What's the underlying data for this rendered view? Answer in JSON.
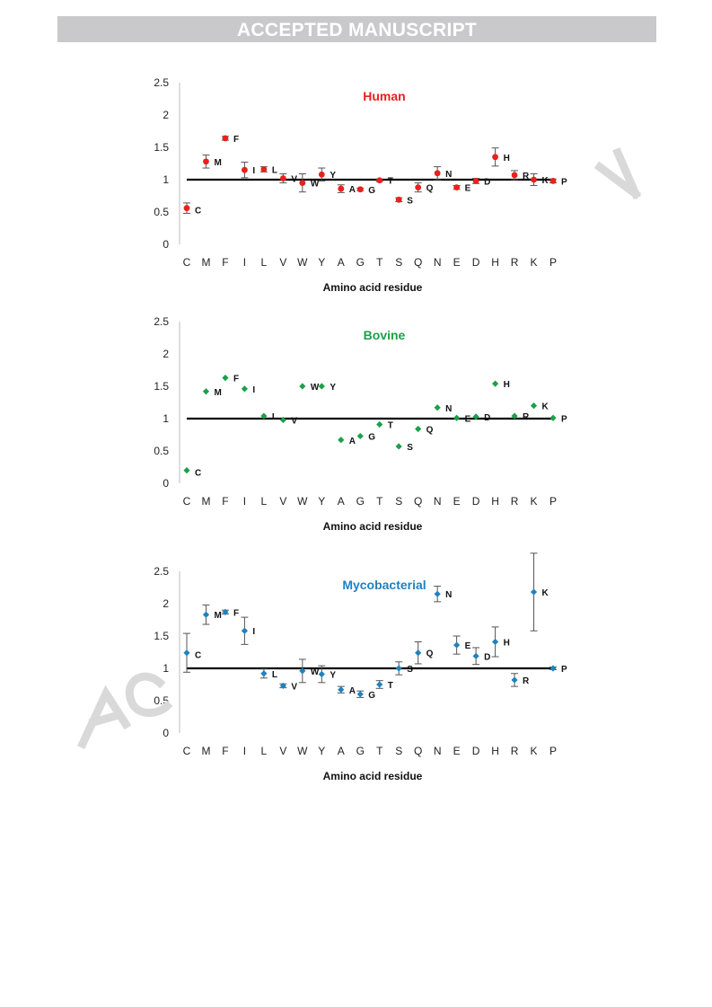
{
  "header": {
    "banner": "ACCEPTED MANUSCRIPT"
  },
  "chart_data": [
    {
      "type": "scatter",
      "title": "Human",
      "title_color": "#e8211c",
      "marker_color": "#e8211c",
      "marker": "circle",
      "xlabel": "Amino acid residue",
      "ylabel": "",
      "ylim": [
        0,
        2.5
      ],
      "yticks": [
        "0",
        "0.5",
        "1",
        "1.5",
        "2",
        "2.5"
      ],
      "reference_line": 1,
      "categories": [
        "C",
        "M",
        "F",
        "I",
        "L",
        "V",
        "W",
        "Y",
        "A",
        "G",
        "T",
        "S",
        "Q",
        "N",
        "E",
        "D",
        "H",
        "R",
        "K",
        "P"
      ],
      "point_labels": [
        "C",
        "M",
        "F",
        "I",
        "L",
        "V",
        "W",
        "Y",
        "A",
        "G",
        "T",
        "S",
        "Q",
        "N",
        "E",
        "D",
        "H",
        "R",
        "K",
        "P"
      ],
      "values": [
        0.56,
        1.28,
        1.64,
        1.15,
        1.16,
        1.02,
        0.95,
        1.08,
        0.86,
        0.85,
        0.99,
        0.69,
        0.88,
        1.1,
        0.88,
        0.98,
        1.35,
        1.07,
        1.0,
        0.98
      ],
      "errors": [
        0.08,
        0.1,
        0.03,
        0.12,
        0.04,
        0.07,
        0.14,
        0.1,
        0.06,
        0.02,
        0.02,
        0.03,
        0.07,
        0.1,
        0.03,
        0.04,
        0.14,
        0.07,
        0.09,
        0.03
      ]
    },
    {
      "type": "scatter",
      "title": "Bovine",
      "title_color": "#1aa14a",
      "marker_color": "#1aa14a",
      "marker": "diamond",
      "xlabel": "Amino acid residue",
      "ylabel": "",
      "ylim": [
        0,
        2.5
      ],
      "yticks": [
        "0",
        "0.5",
        "1",
        "1.5",
        "2",
        "2.5"
      ],
      "reference_line": 1,
      "categories": [
        "C",
        "M",
        "F",
        "I",
        "L",
        "V",
        "W",
        "Y",
        "A",
        "G",
        "T",
        "S",
        "Q",
        "N",
        "E",
        "D",
        "H",
        "R",
        "K",
        "P"
      ],
      "point_labels": [
        "C",
        "M",
        "F",
        "I",
        "L",
        "V",
        "W",
        "Y",
        "A",
        "G",
        "T",
        "S",
        "Q",
        "N",
        "E",
        "D",
        "H",
        "R",
        "K",
        "P"
      ],
      "values": [
        0.2,
        1.42,
        1.63,
        1.46,
        1.04,
        0.98,
        1.5,
        1.5,
        0.67,
        0.73,
        0.91,
        0.57,
        0.84,
        1.17,
        1.01,
        1.03,
        1.54,
        1.04,
        1.2,
        1.01
      ],
      "errors": []
    },
    {
      "type": "scatter",
      "title": "Mycobacterial",
      "title_color": "#1f82c0",
      "marker_color": "#1f82c0",
      "marker": "diamond",
      "xlabel": "Amino acid residue",
      "ylabel": "",
      "ylim": [
        0,
        2.5
      ],
      "yticks": [
        "0",
        "0.5",
        "1",
        "1.5",
        "2",
        "2.5"
      ],
      "reference_line": 1,
      "categories": [
        "C",
        "M",
        "F",
        "I",
        "L",
        "V",
        "W",
        "Y",
        "A",
        "G",
        "T",
        "S",
        "Q",
        "N",
        "E",
        "D",
        "H",
        "R",
        "K",
        "P"
      ],
      "point_labels": [
        "C",
        "M",
        "F",
        "I",
        "L",
        "V",
        "W",
        "Y",
        "A",
        "G",
        "T",
        "S",
        "Q",
        "N",
        "E",
        "D",
        "H",
        "R",
        "K",
        "P"
      ],
      "values": [
        1.24,
        1.83,
        1.87,
        1.58,
        0.92,
        0.73,
        0.96,
        0.91,
        0.67,
        0.6,
        0.75,
        1.0,
        1.24,
        2.15,
        1.36,
        1.19,
        1.41,
        0.82,
        2.18,
        1.0
      ],
      "errors": [
        0.3,
        0.15,
        0.03,
        0.21,
        0.07,
        0.03,
        0.18,
        0.13,
        0.05,
        0.05,
        0.06,
        0.1,
        0.17,
        0.12,
        0.14,
        0.13,
        0.23,
        0.1,
        0.6,
        0.02
      ]
    }
  ]
}
